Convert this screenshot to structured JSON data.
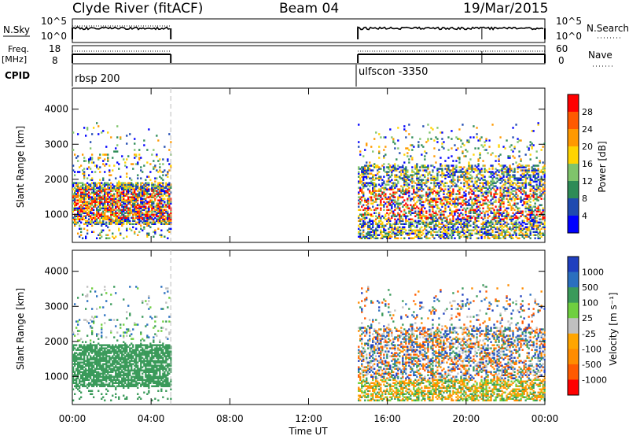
{
  "header": {
    "station": "Clyde River (fitACF)",
    "beam": "Beam 04",
    "date": "19/Mar/2015"
  },
  "strip_labels": {
    "nsky": "N.Sky",
    "nsky_ticks": [
      "10^5",
      "10^0"
    ],
    "nsearch": "N.Search",
    "nsearch_ticks": [
      "10^5",
      "10^0"
    ],
    "freq_label_top": "Freq.",
    "freq_label_bottom": "[MHz]",
    "freq_ticks": [
      "18",
      "8"
    ],
    "nave": "Nave",
    "nave_ticks": [
      "60",
      "0"
    ],
    "cpid": "CPID",
    "cpid_left": "rbsp 200",
    "cpid_right": "ulfscon -3350"
  },
  "x_axis": {
    "label": "Time UT",
    "ticks": [
      "00:00",
      "04:00",
      "08:00",
      "12:00",
      "16:00",
      "20:00",
      "00:00"
    ]
  },
  "colors": {
    "power_scale": [
      "#0000ff",
      "#1f4ab0",
      "#2e8b57",
      "#7fc46b",
      "#ffd400",
      "#ff9900",
      "#ff5a00",
      "#ff0000"
    ],
    "velocity_scale": [
      "#ff0000",
      "#ff5a00",
      "#ff8c00",
      "#ffa500",
      "#c0c0c0",
      "#6fcf3f",
      "#3a9a5a",
      "#2a6fbf",
      "#1f3fbf"
    ]
  },
  "chart_data": [
    {
      "type": "heatmap",
      "name": "power",
      "ylabel": "Slant Range [km]",
      "yticks": [
        "4000",
        "3000",
        "2000",
        "1000"
      ],
      "ylim": [
        200,
        4600
      ],
      "xlim_hours": [
        0,
        24
      ],
      "colorbar_label": "Power [dB]",
      "colorbar_ticks": [
        "28",
        "24",
        "20",
        "16",
        "12",
        "8",
        "4"
      ],
      "data_coverage_hours": [
        [
          0.0,
          5.0
        ],
        [
          14.5,
          24.0
        ]
      ]
    },
    {
      "type": "heatmap",
      "name": "velocity",
      "ylabel": "Slant Range [km]",
      "yticks": [
        "4000",
        "3000",
        "2000",
        "1000"
      ],
      "ylim": [
        200,
        4600
      ],
      "xlim_hours": [
        0,
        24
      ],
      "colorbar_label": "Velocity [m s⁻¹]",
      "colorbar_ticks": [
        "1000",
        "500",
        "100",
        "25",
        "-25",
        "-100",
        "-500",
        "-1000"
      ],
      "data_coverage_hours": [
        [
          0.0,
          5.0
        ],
        [
          14.5,
          24.0
        ]
      ]
    }
  ]
}
